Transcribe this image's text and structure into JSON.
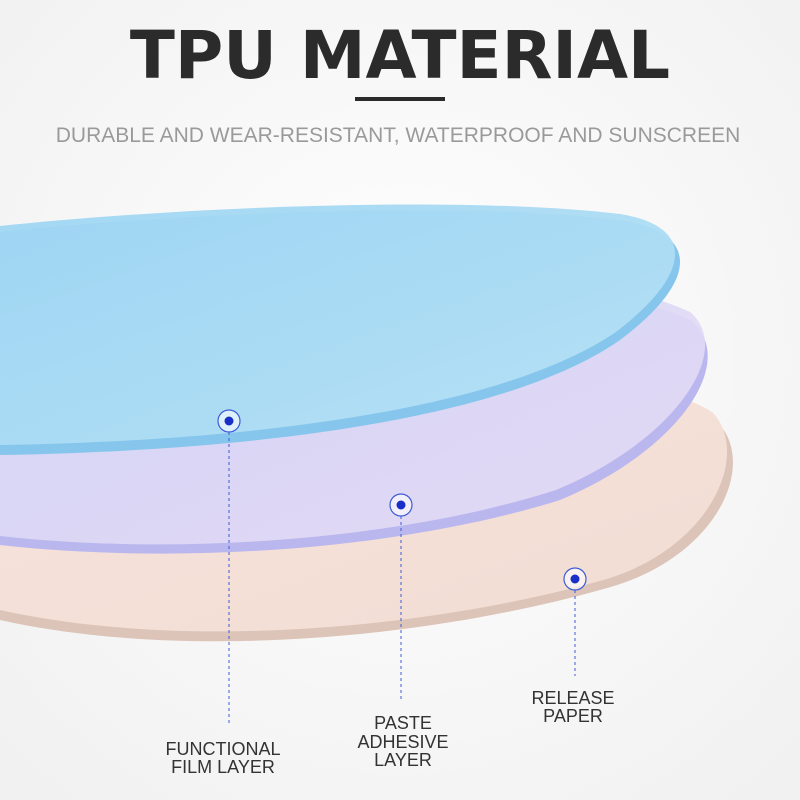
{
  "header": {
    "title": "TPU MATERIAL",
    "subtitle": "DURABLE AND WEAR-RESISTANT, WATERPROOF AND SUNSCREEN"
  },
  "labels": [
    {
      "lines": [
        "FUNCTIONAL",
        "FILM LAYER"
      ]
    },
    {
      "lines": [
        "PASTE",
        "ADHESIVE",
        "LAYER"
      ]
    },
    {
      "lines": [
        "RELEASE",
        "PAPER"
      ]
    }
  ]
}
